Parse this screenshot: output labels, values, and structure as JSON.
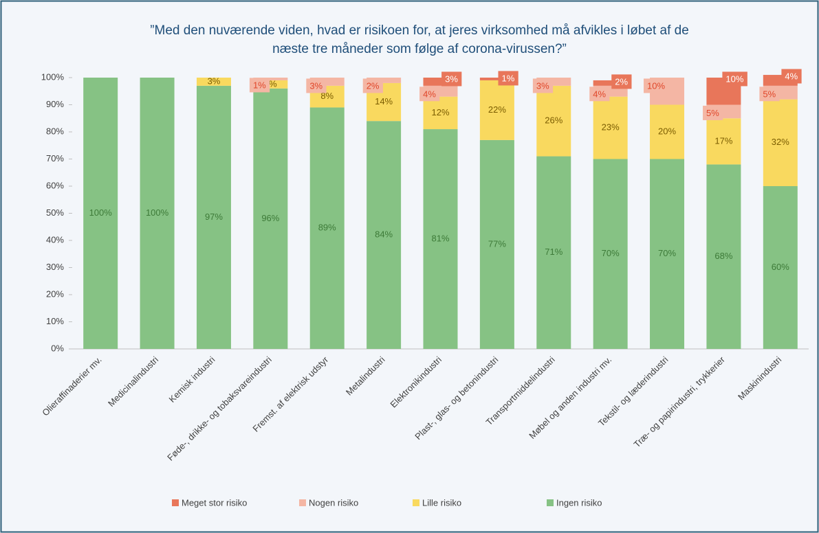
{
  "chart_data": {
    "type": "stacked_bar",
    "title": "”Med den nuværende viden, hvad er risikoen for, at jeres virksomhed må afvikles i løbet af de næste tre måneder som følge af corona-virussen?”",
    "categories": [
      "Olieraffinaderier mv.",
      "Medicinalindustri",
      "Kemisk industri",
      "Føde-, drikke- og tobaksvareindustri",
      "Fremst. af elektrisk udstyr",
      "Metalindustri",
      "Elektronikindustri",
      "Plast-, glas- og betonindustri",
      "Transportmiddelindustri",
      "Møbel og anden industri mv.",
      "Tekstil- og læderindustri",
      "Træ- og papirindustri, trykkerier",
      "Maskinindustri"
    ],
    "series": [
      {
        "name": "Ingen risiko",
        "color": "#86c284",
        "values": [
          100,
          100,
          97,
          96,
          89,
          84,
          81,
          77,
          71,
          70,
          70,
          68,
          60
        ],
        "value_labels": [
          "100%",
          "100%",
          "97%",
          "96%",
          "89%",
          "84%",
          "81%",
          "77%",
          "71%",
          "70%",
          "70%",
          "68%",
          "60%"
        ]
      },
      {
        "name": "Lille risiko",
        "color": "#f9d95f",
        "values": [
          null,
          null,
          3,
          3,
          8,
          14,
          12,
          22,
          26,
          23,
          20,
          17,
          32
        ],
        "value_labels": [
          null,
          null,
          "3%",
          "3%",
          "8%",
          "14%",
          "12%",
          "22%",
          "26%",
          "23%",
          "20%",
          "17%",
          "32%"
        ]
      },
      {
        "name": "Nogen risiko",
        "color": "#f4b6a4",
        "values": [
          null,
          null,
          null,
          1,
          3,
          2,
          4,
          null,
          3,
          4,
          10,
          5,
          5
        ],
        "value_labels": [
          null,
          null,
          null,
          "1%",
          "3%",
          "2%",
          "4%",
          null,
          "3%",
          "4%",
          "10%",
          "5%",
          "5%"
        ]
      },
      {
        "name": "Meget stor risiko",
        "color": "#e8765a",
        "values": [
          null,
          null,
          null,
          null,
          null,
          null,
          3,
          1,
          null,
          2,
          null,
          10,
          4
        ],
        "value_labels": [
          null,
          null,
          null,
          null,
          null,
          null,
          "3%",
          "1%",
          null,
          "2%",
          null,
          "10%",
          "4%"
        ]
      }
    ],
    "ylim": [
      0,
      100
    ],
    "yticks": [
      {
        "value": 0,
        "label": "0%"
      },
      {
        "value": 10,
        "label": "10%"
      },
      {
        "value": 20,
        "label": "20%"
      },
      {
        "value": 30,
        "label": "30%"
      },
      {
        "value": 40,
        "label": "40%"
      },
      {
        "value": 50,
        "label": "50%"
      },
      {
        "value": 60,
        "label": "60%"
      },
      {
        "value": 70,
        "label": "70%"
      },
      {
        "value": 80,
        "label": "80%"
      },
      {
        "value": 90,
        "label": "90%"
      },
      {
        "value": 100,
        "label": "100%"
      }
    ],
    "legend": "bottom"
  }
}
